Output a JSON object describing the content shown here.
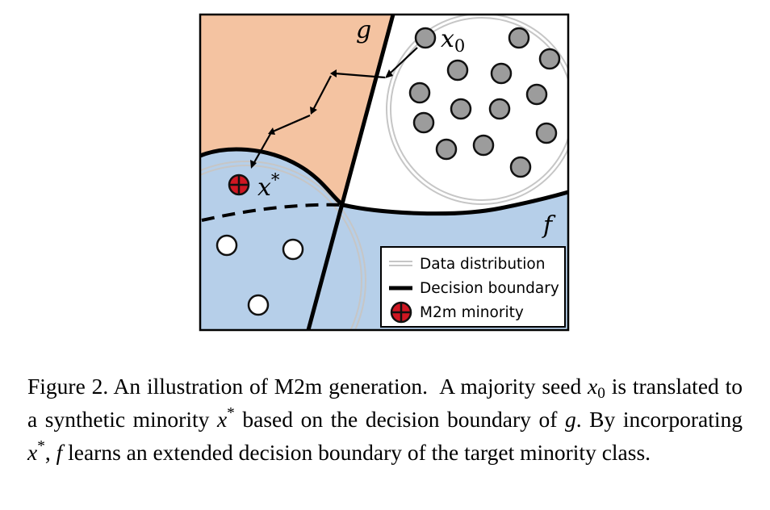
{
  "figure": {
    "label_g": "g",
    "label_f": "f",
    "label_x0_base": "x",
    "label_x0_sub": "0",
    "label_xstar_base": "x",
    "label_xstar_sup": "*",
    "legend": {
      "data_distribution": "Data distribution",
      "decision_boundary": "Decision boundary",
      "m2m_minority": "M2m minority"
    },
    "colors": {
      "region_g": "#f4c3a1",
      "region_f": "#b6cfe9",
      "majority_point": "#9c9c9c",
      "minority_point": "#d01722",
      "distribution_ring": "#c9c9c9"
    }
  },
  "caption": {
    "s1": "Figure 2. An illustration of M2m generation.",
    "s2": "A majority seed",
    "x0_base": "x",
    "x0_sub": "0",
    "s3": "is translated to a synthetic minority",
    "xstar_base": "x",
    "xstar_sup": "*",
    "s4": "based on the decision boundary of",
    "g": "g",
    "s5": ". By incorporating",
    "xstar2_base": "x",
    "xstar2_sup": "*",
    "s6": ",",
    "f": "f",
    "s7": "learns an extended decision boundary of the target minority class."
  }
}
